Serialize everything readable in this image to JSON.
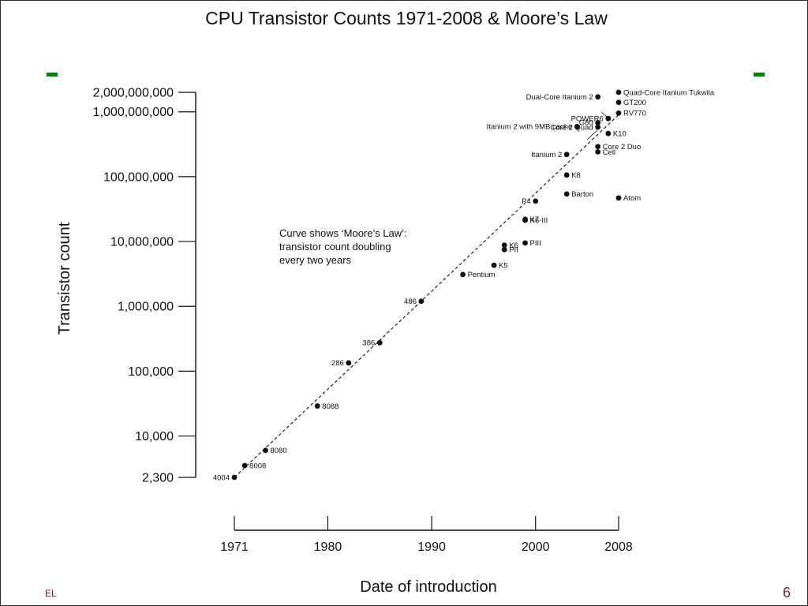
{
  "colors": {
    "accent_green": "#0a7d0a",
    "footer": "#7a1f3a"
  },
  "footer": {
    "left_text": "EL",
    "right_page": "6"
  },
  "chart_data": {
    "type": "scatter",
    "title": "CPU Transistor Counts 1971-2008 & Moore’s Law",
    "xlabel": "Date of introduction",
    "ylabel": "Transistor count",
    "y_scale": "log",
    "xlim": [
      1971,
      2008
    ],
    "ylim": [
      2300,
      2000000000
    ],
    "x_ticks": [
      {
        "value": 1971,
        "label": "1971"
      },
      {
        "value": 1980,
        "label": "1980"
      },
      {
        "value": 1990,
        "label": "1990"
      },
      {
        "value": 2000,
        "label": "2000"
      },
      {
        "value": 2008,
        "label": "2008"
      }
    ],
    "y_ticks": [
      {
        "value": 2300,
        "label": "2,300"
      },
      {
        "value": 10000,
        "label": "10,000"
      },
      {
        "value": 100000,
        "label": "100,000"
      },
      {
        "value": 1000000,
        "label": "1,000,000"
      },
      {
        "value": 10000000,
        "label": "10,000,000"
      },
      {
        "value": 100000000,
        "label": "100,000,000"
      },
      {
        "value": 1000000000,
        "label": "1,000,000,000"
      },
      {
        "value": 2000000000,
        "label": "2,000,000,000"
      }
    ],
    "annotation": [
      "Curve shows ‘Moore’s Law’:",
      "transistor count doubling",
      "every two years"
    ],
    "trend": {
      "label": "Moore’s Law",
      "x": [
        1971,
        2008
      ],
      "y": [
        2300,
        900000000
      ]
    },
    "points": [
      {
        "name": "4004",
        "x": 1971,
        "y": 2300,
        "side": "left"
      },
      {
        "name": "8008",
        "x": 1972,
        "y": 3500,
        "side": "right"
      },
      {
        "name": "8080",
        "x": 1974,
        "y": 6000,
        "side": "right"
      },
      {
        "name": "8088",
        "x": 1979,
        "y": 29000,
        "side": "right"
      },
      {
        "name": "286",
        "x": 1982,
        "y": 134000,
        "side": "left"
      },
      {
        "name": "386",
        "x": 1985,
        "y": 275000,
        "side": "left"
      },
      {
        "name": "486",
        "x": 1989,
        "y": 1200000,
        "side": "left"
      },
      {
        "name": "Pentium",
        "x": 1993,
        "y": 3100000,
        "side": "right"
      },
      {
        "name": "K5",
        "x": 1996,
        "y": 4300000,
        "side": "right"
      },
      {
        "name": "K6",
        "x": 1997,
        "y": 8800000,
        "side": "right"
      },
      {
        "name": "PII",
        "x": 1997,
        "y": 7500000,
        "side": "right"
      },
      {
        "name": "PIII",
        "x": 1999,
        "y": 9500000,
        "side": "right"
      },
      {
        "name": "K7",
        "x": 1999,
        "y": 22000000,
        "side": "right"
      },
      {
        "name": "K6-III",
        "x": 1999,
        "y": 21300000,
        "side": "right"
      },
      {
        "name": "P4",
        "x": 2000,
        "y": 42000000,
        "side": "left"
      },
      {
        "name": "Barton",
        "x": 2003,
        "y": 54000000,
        "side": "right"
      },
      {
        "name": "K8",
        "x": 2003,
        "y": 106000000,
        "side": "right"
      },
      {
        "name": "Atom",
        "x": 2008,
        "y": 47000000,
        "side": "right"
      },
      {
        "name": "Itanium 2",
        "x": 2003,
        "y": 220000000,
        "side": "left"
      },
      {
        "name": "Cell",
        "x": 2006,
        "y": 241000000,
        "side": "right"
      },
      {
        "name": "Core 2 Duo",
        "x": 2006,
        "y": 291000000,
        "side": "right"
      },
      {
        "name": "K10",
        "x": 2007,
        "y": 463000000,
        "side": "right"
      },
      {
        "name": "Core 2 Quad",
        "x": 2006,
        "y": 582000000,
        "side": "left"
      },
      {
        "name": "Itanium 2 with 9MB cache",
        "x": 2004,
        "y": 592000000,
        "side": "left"
      },
      {
        "name": "G80",
        "x": 2006,
        "y": 681000000,
        "side": "left"
      },
      {
        "name": "POWER6",
        "x": 2007,
        "y": 789000000,
        "side": "left"
      },
      {
        "name": "RV770",
        "x": 2008,
        "y": 956000000,
        "side": "right"
      },
      {
        "name": "GT200",
        "x": 2008,
        "y": 1400000000,
        "side": "right"
      },
      {
        "name": "Dual-Core Itanium 2",
        "x": 2006,
        "y": 1700000000,
        "side": "left"
      },
      {
        "name": "Quad-Core Itanium Tukwila",
        "x": 2008,
        "y": 2000000000,
        "side": "right"
      }
    ]
  }
}
